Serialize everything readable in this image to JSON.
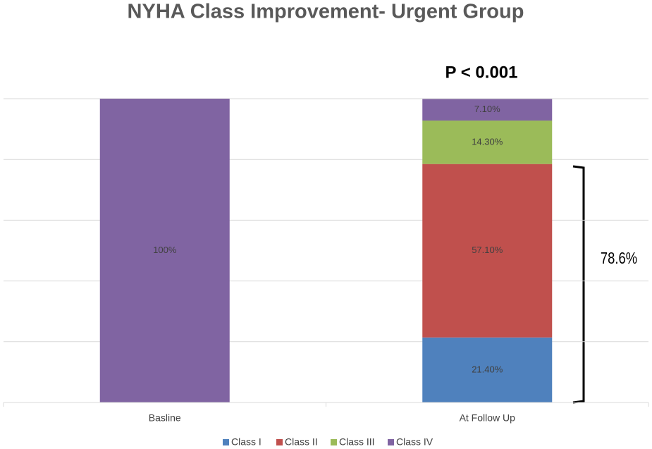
{
  "chart_data": {
    "type": "stacked_bar",
    "title": "NYHA Class Improvement- Urgent Group",
    "categories": [
      "Basline",
      "At Follow Up"
    ],
    "series": [
      {
        "name": "Class I",
        "color": "#4f81bd",
        "values": [
          null,
          21.4
        ],
        "value_labels": [
          null,
          "21.40%"
        ]
      },
      {
        "name": "Class II",
        "color": "#c0504d",
        "values": [
          null,
          57.1
        ],
        "value_labels": [
          null,
          "57.10%"
        ]
      },
      {
        "name": "Class III",
        "color": "#9bbb59",
        "values": [
          null,
          14.3
        ],
        "value_labels": [
          null,
          "14.30%"
        ]
      },
      {
        "name": "Class IV",
        "color": "#8064a2",
        "values": [
          100,
          7.1
        ],
        "value_labels": [
          "100%",
          "7.10%"
        ]
      }
    ],
    "ylim": [
      0,
      100
    ],
    "yticks": [
      0,
      20,
      40,
      60,
      80,
      100
    ],
    "grid": true,
    "legend": "bottom",
    "annotations": [
      "P < 0.001",
      "78.6%"
    ]
  }
}
